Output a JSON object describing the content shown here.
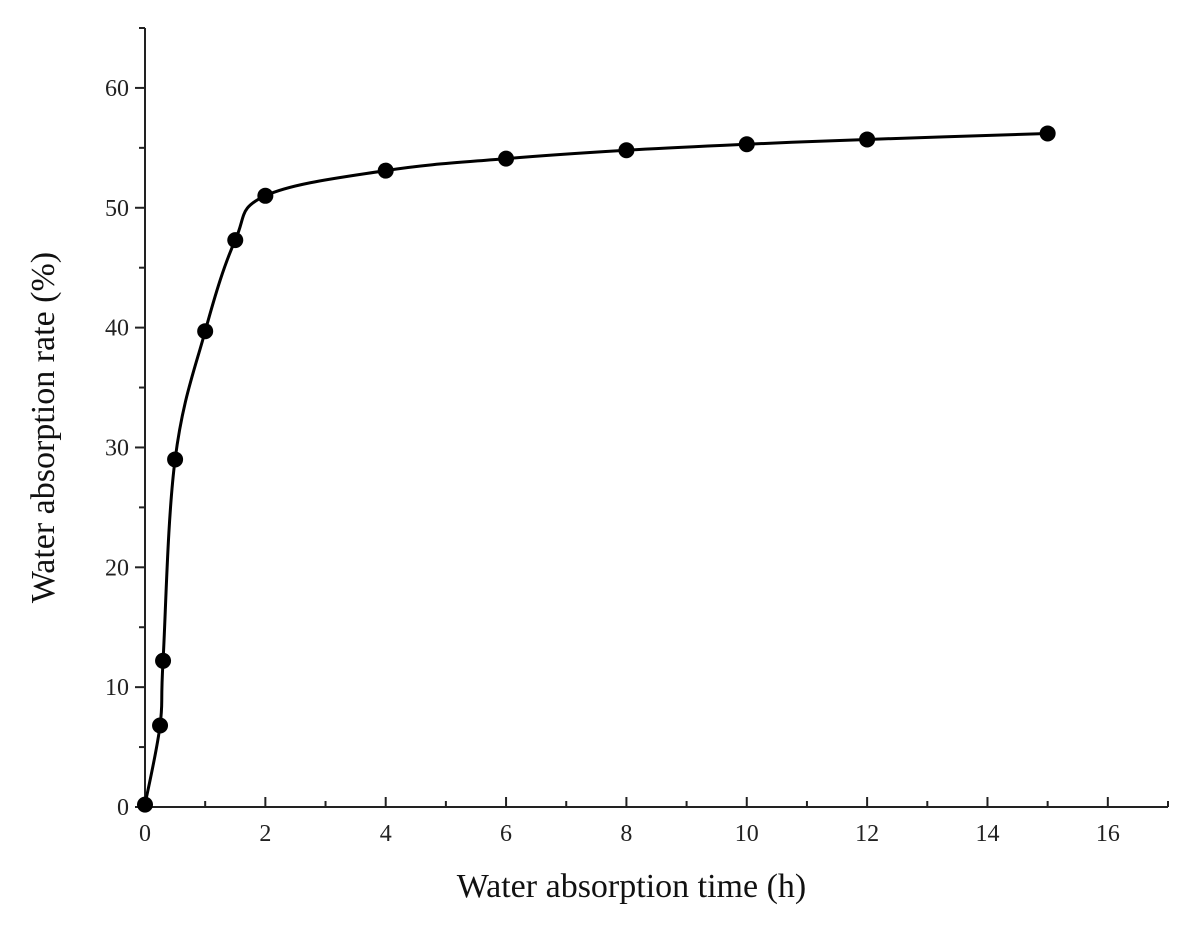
{
  "chart_data": {
    "type": "line",
    "title": "",
    "xlabel": "Water absorption time (h)",
    "ylabel": "Water absorption rate (%)",
    "xlim": [
      0,
      17
    ],
    "ylim": [
      0,
      65
    ],
    "x_ticks": [
      0,
      2,
      4,
      6,
      8,
      10,
      12,
      14,
      16
    ],
    "y_ticks": [
      0,
      10,
      20,
      30,
      40,
      50,
      60
    ],
    "x_tick_labels": [
      "0",
      "2",
      "4",
      "6",
      "8",
      "10",
      "12",
      "14",
      "16"
    ],
    "y_tick_labels": [
      "0",
      "10",
      "20",
      "30",
      "40",
      "50",
      "60"
    ],
    "grid": false,
    "legend": "none",
    "series": [
      {
        "name": "Water absorption rate",
        "color": "#000000",
        "x": [
          0,
          0.25,
          0.3,
          0.5,
          1,
          1.5,
          2,
          4,
          6,
          8,
          10,
          12,
          15
        ],
        "values": [
          0.2,
          6.8,
          12.2,
          29.0,
          39.7,
          47.3,
          51.0,
          53.1,
          54.1,
          54.8,
          55.3,
          55.7,
          56.2
        ]
      }
    ]
  }
}
